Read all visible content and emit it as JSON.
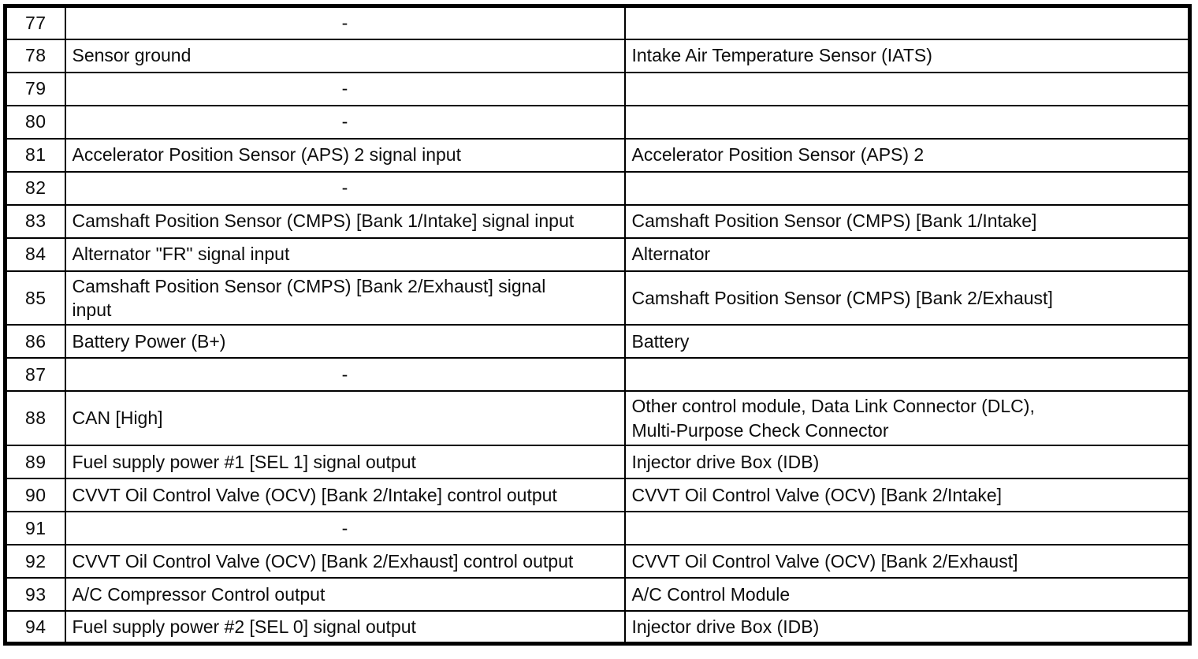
{
  "page": {
    "background_color": "#ffffff",
    "border_color": "#000000",
    "text_color": "#0d0d0d"
  },
  "table": {
    "description": "connector-pinout-table-pins-77-94",
    "rows": [
      {
        "pin": "77",
        "description": "-",
        "connected_to": ""
      },
      {
        "pin": "78",
        "description": "Sensor ground",
        "connected_to": "Intake Air Temperature Sensor (IATS)"
      },
      {
        "pin": "79",
        "description": "-",
        "connected_to": ""
      },
      {
        "pin": "80",
        "description": "-",
        "connected_to": ""
      },
      {
        "pin": "81",
        "description": "Accelerator Position Sensor (APS) 2 signal input",
        "connected_to": "Accelerator Position Sensor (APS) 2"
      },
      {
        "pin": "82",
        "description": "-",
        "connected_to": ""
      },
      {
        "pin": "83",
        "description": "Camshaft Position Sensor (CMPS) [Bank 1/Intake] signal input",
        "connected_to": "Camshaft Position Sensor (CMPS) [Bank 1/Intake]"
      },
      {
        "pin": "84",
        "description": "Alternator \"FR\" signal input",
        "connected_to": "Alternator"
      },
      {
        "pin": "85",
        "description": "Camshaft Position Sensor (CMPS) [Bank 2/Exhaust] signal\ninput",
        "connected_to": "Camshaft Position Sensor (CMPS) [Bank 2/Exhaust]"
      },
      {
        "pin": "86",
        "description": "Battery Power (B+)",
        "connected_to": "Battery"
      },
      {
        "pin": "87",
        "description": "-",
        "connected_to": ""
      },
      {
        "pin": "88",
        "description": "CAN [High]",
        "connected_to": "Other control module, Data Link Connector (DLC),\nMulti-Purpose Check Connector"
      },
      {
        "pin": "89",
        "description": "Fuel supply power #1 [SEL 1] signal output",
        "connected_to": "Injector drive Box (IDB)"
      },
      {
        "pin": "90",
        "description": "CVVT Oil Control Valve (OCV) [Bank 2/Intake] control output",
        "connected_to": "CVVT Oil Control Valve (OCV) [Bank 2/Intake]"
      },
      {
        "pin": "91",
        "description": "-",
        "connected_to": ""
      },
      {
        "pin": "92",
        "description": "CVVT Oil Control Valve (OCV) [Bank 2/Exhaust] control output",
        "connected_to": "CVVT Oil Control Valve (OCV) [Bank 2/Exhaust]"
      },
      {
        "pin": "93",
        "description": "A/C Compressor Control output",
        "connected_to": "A/C Control Module"
      },
      {
        "pin": "94",
        "description": "Fuel supply power #2 [SEL 0] signal output",
        "connected_to": "Injector drive Box (IDB)"
      }
    ]
  }
}
